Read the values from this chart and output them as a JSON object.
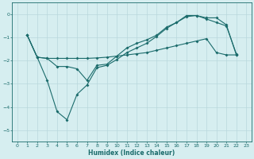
{
  "xlabel": "Humidex (Indice chaleur)",
  "background_color": "#d6eef0",
  "grid_color": "#b8d8dc",
  "line_color": "#1a6b6b",
  "xlim": [
    -0.5,
    23.5
  ],
  "ylim": [
    -5.5,
    0.5
  ],
  "xticks": [
    0,
    1,
    2,
    3,
    4,
    5,
    6,
    7,
    8,
    9,
    10,
    11,
    12,
    13,
    14,
    15,
    16,
    17,
    18,
    19,
    20,
    21,
    22,
    23
  ],
  "yticks": [
    0,
    -1,
    -2,
    -3,
    -4,
    -5
  ],
  "line1_x": [
    1,
    2,
    3,
    4,
    5,
    6,
    7,
    8,
    9,
    10,
    11,
    12,
    13,
    14,
    15,
    16,
    17,
    18,
    19,
    20,
    21,
    22
  ],
  "line1_y": [
    -0.9,
    -1.85,
    -2.85,
    -4.2,
    -4.55,
    -3.45,
    -3.05,
    -2.3,
    -2.2,
    -1.95,
    -1.65,
    -1.45,
    -1.25,
    -0.95,
    -0.6,
    -0.35,
    -0.05,
    -0.05,
    -0.15,
    -0.15,
    -0.45,
    -1.75
  ],
  "line2_x": [
    1,
    2,
    3,
    4,
    5,
    6,
    7,
    8,
    9,
    10,
    11,
    12,
    13,
    14,
    15,
    16,
    17,
    18,
    19,
    20,
    21,
    22
  ],
  "line2_y": [
    -0.9,
    -1.85,
    -1.9,
    -2.25,
    -2.25,
    -2.35,
    -2.85,
    -2.2,
    -2.15,
    -1.8,
    -1.45,
    -1.25,
    -1.1,
    -0.9,
    -0.55,
    -0.35,
    -0.1,
    -0.05,
    -0.2,
    -0.35,
    -0.5,
    -1.7
  ],
  "line3_x": [
    1,
    2,
    3,
    4,
    5,
    6,
    7,
    8,
    9,
    10,
    11,
    12,
    13,
    14,
    15,
    16,
    17,
    18,
    19,
    20,
    21,
    22
  ],
  "line3_y": [
    -0.9,
    -1.85,
    -1.9,
    -1.9,
    -1.9,
    -1.9,
    -1.9,
    -1.88,
    -1.85,
    -1.8,
    -1.75,
    -1.7,
    -1.65,
    -1.55,
    -1.45,
    -1.35,
    -1.25,
    -1.15,
    -1.05,
    -1.65,
    -1.75,
    -1.75
  ]
}
